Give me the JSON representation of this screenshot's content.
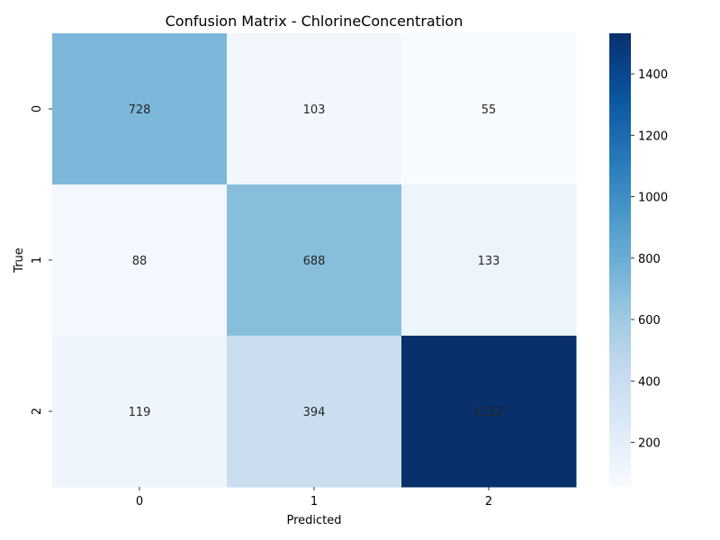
{
  "chart_data": {
    "type": "heatmap",
    "title": "Confusion Matrix - ChlorineConcentration",
    "xlabel": "Predicted",
    "ylabel": "True",
    "x_categories": [
      "0",
      "1",
      "2"
    ],
    "y_categories": [
      "0",
      "1",
      "2"
    ],
    "values": [
      [
        728,
        103,
        55
      ],
      [
        88,
        688,
        133
      ],
      [
        119,
        394,
        1532
      ]
    ],
    "colormap": "Blues",
    "colorbar": {
      "min": 55,
      "max": 1532,
      "ticks": [
        200,
        400,
        600,
        800,
        1000,
        1200,
        1400
      ]
    }
  }
}
